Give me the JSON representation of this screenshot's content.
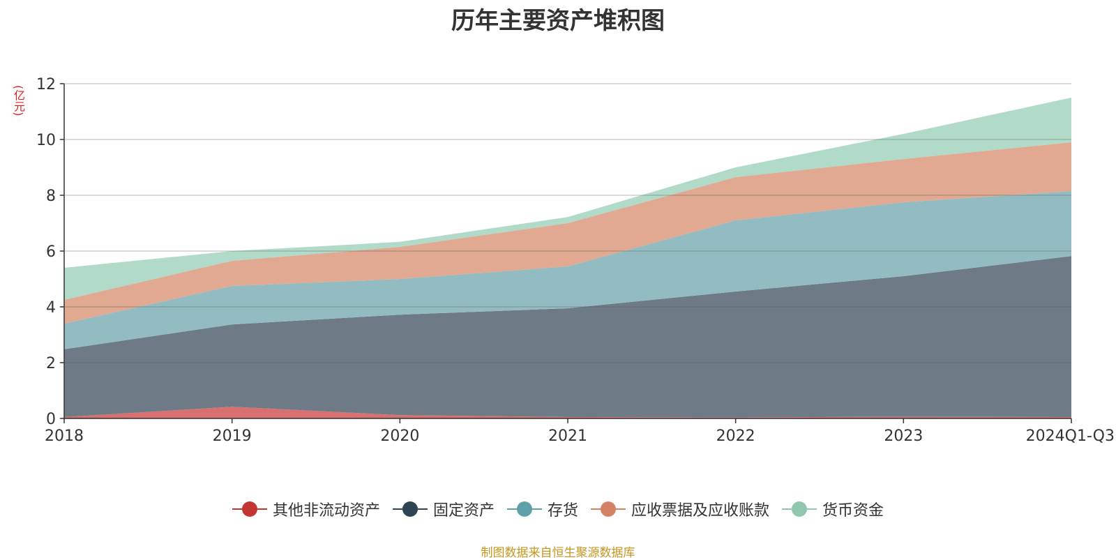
{
  "chart_data": {
    "type": "area",
    "stacked": true,
    "title": "历年主要资产堆积图",
    "unit_label": "(亿元)",
    "categories": [
      "2018",
      "2019",
      "2020",
      "2021",
      "2022",
      "2023",
      "2024Q1-Q3"
    ],
    "y_ticks": [
      "0",
      "2",
      "4",
      "6",
      "8",
      "10",
      "12"
    ],
    "ylim": [
      0,
      12
    ],
    "grid": true,
    "legend_position": "bottom",
    "series": [
      {
        "name": "其他非流动资产",
        "color": "#c23531",
        "fill": "#d97070",
        "values": [
          0.05,
          0.42,
          0.12,
          0.05,
          0.04,
          0.06,
          0.05
        ]
      },
      {
        "name": "固定资产",
        "color": "#2f4554",
        "fill": "#6e7b86",
        "values": [
          2.43,
          2.95,
          3.6,
          3.9,
          4.51,
          5.04,
          5.77
        ]
      },
      {
        "name": "存货",
        "color": "#61a0a8",
        "fill": "#93bcc2",
        "values": [
          0.92,
          1.38,
          1.28,
          1.5,
          2.55,
          2.65,
          2.33
        ]
      },
      {
        "name": "应收票据及应收账款",
        "color": "#d48265",
        "fill": "#e1a892",
        "values": [
          0.85,
          0.9,
          1.15,
          1.55,
          1.55,
          1.55,
          1.75
        ]
      },
      {
        "name": "货币资金",
        "color": "#91c7ae",
        "fill": "#b1dac8",
        "values": [
          1.15,
          0.35,
          0.18,
          0.22,
          0.35,
          0.9,
          1.6
        ]
      }
    ]
  },
  "source_note": "制图数据来自恒生聚源数据库"
}
